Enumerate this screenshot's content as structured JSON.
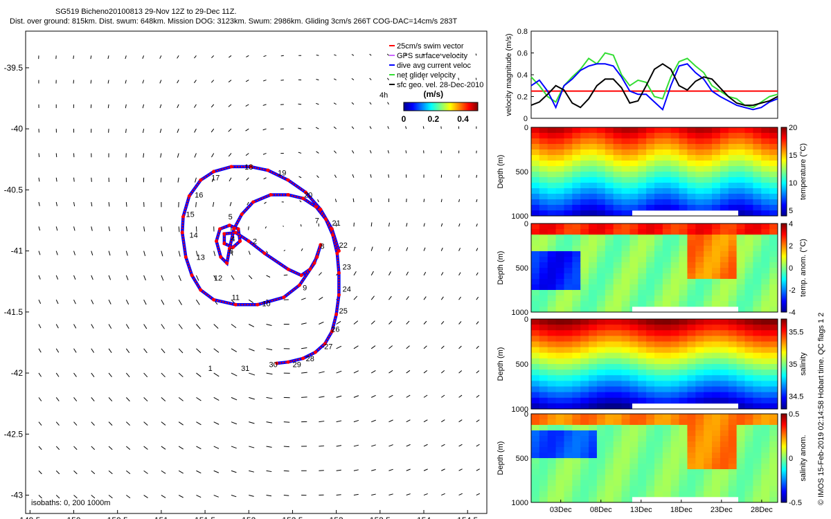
{
  "header": {
    "line1": "SG519 Bicheno20100813 29-Nov 12Z to 29-Dec 11Z.",
    "line2": "Dist. over ground: 815km. Dist. swum: 648km. Mission DOG: 3123km. Swum: 2986km. Gliding 3cm/s 266T COG-DAC=14cm/s 283T"
  },
  "footer_note": "© IMOS 15-Feb-2019 02:14:58 Hobart time. QC flags 1 2",
  "colors": {
    "track_red": "#ff0000",
    "track_blue": "#0000ff",
    "net_green": "#33dd33",
    "black": "#000000"
  },
  "chart_data": [
    {
      "type": "scatter",
      "title": "map",
      "x_ticks": [
        "149.5",
        "150",
        "150.5",
        "151",
        "151.5",
        "152",
        "152.5",
        "153",
        "153.5",
        "154",
        "154.5"
      ],
      "y_ticks": [
        "-39.5",
        "-40",
        "-40.5",
        "-41",
        "-41.5",
        "-42",
        "-42.5",
        "-43"
      ],
      "xlim": [
        149.45,
        154.72
      ],
      "ylim": [
        -43.15,
        -39.2
      ],
      "legend": [
        {
          "label": "25cm/s swim vector",
          "color": "#ff0000"
        },
        {
          "label": "GPS surface velocity",
          "color": "#cc66ff"
        },
        {
          "label": "dive avg current veloc",
          "color": "#0000ff"
        },
        {
          "label": "net glider velocity",
          "color": "#33dd33"
        },
        {
          "label": "sfc geo. vel. 28-Dec-2010",
          "color": "#000000"
        }
      ],
      "legend_placement": "top-right",
      "colorbar": {
        "title": "(m/s)",
        "ticks": [
          "0",
          "0.2",
          "0.4"
        ],
        "range": [
          0,
          0.5
        ]
      },
      "annotation_4h": "4h",
      "isobaths": "isobaths: 0,  200  1000m",
      "track": [
        [
          152.32,
          -41.92
        ],
        [
          152.45,
          -41.91
        ],
        [
          152.62,
          -41.88
        ],
        [
          152.76,
          -41.83
        ],
        [
          152.87,
          -41.76
        ],
        [
          152.95,
          -41.66
        ],
        [
          153.0,
          -41.52
        ],
        [
          153.03,
          -41.36
        ],
        [
          153.03,
          -41.18
        ],
        [
          153.01,
          -41.02
        ],
        [
          152.96,
          -40.87
        ],
        [
          152.88,
          -40.74
        ],
        [
          152.77,
          -40.64
        ],
        [
          152.62,
          -40.57
        ],
        [
          152.45,
          -40.54
        ],
        [
          152.25,
          -40.54
        ],
        [
          152.05,
          -40.6
        ],
        [
          151.92,
          -40.7
        ],
        [
          151.83,
          -40.82
        ],
        [
          151.78,
          -40.98
        ],
        [
          151.75,
          -41.1
        ],
        [
          151.68,
          -41.05
        ],
        [
          151.63,
          -40.92
        ],
        [
          151.67,
          -40.82
        ],
        [
          151.78,
          -40.79
        ],
        [
          151.88,
          -40.82
        ],
        [
          151.9,
          -40.92
        ],
        [
          151.82,
          -40.97
        ],
        [
          151.72,
          -40.94
        ],
        [
          151.72,
          -40.86
        ],
        [
          151.85,
          -40.85
        ],
        [
          152.0,
          -40.92
        ],
        [
          152.18,
          -41.02
        ],
        [
          152.45,
          -41.15
        ],
        [
          152.6,
          -41.2
        ],
        [
          152.7,
          -41.15
        ],
        [
          152.78,
          -41.05
        ],
        [
          152.82,
          -40.95
        ],
        [
          152.75,
          -41.1
        ],
        [
          152.58,
          -41.28
        ],
        [
          152.4,
          -41.38
        ],
        [
          152.1,
          -41.44
        ],
        [
          151.85,
          -41.44
        ],
        [
          151.6,
          -41.4
        ],
        [
          151.45,
          -41.32
        ],
        [
          151.35,
          -41.2
        ],
        [
          151.28,
          -41.05
        ],
        [
          151.24,
          -40.85
        ],
        [
          151.25,
          -40.72
        ],
        [
          151.32,
          -40.55
        ],
        [
          151.45,
          -40.42
        ],
        [
          151.6,
          -40.35
        ],
        [
          151.8,
          -40.31
        ],
        [
          152.02,
          -40.31
        ],
        [
          152.22,
          -40.34
        ],
        [
          152.45,
          -40.42
        ],
        [
          152.65,
          -40.52
        ],
        [
          152.82,
          -40.66
        ],
        [
          152.95,
          -40.82
        ],
        [
          153.03,
          -41.0
        ]
      ],
      "day_labels": [
        {
          "t": "1",
          "lon": 151.56,
          "lat": -41.96
        },
        {
          "t": "31",
          "lon": 151.96,
          "lat": -41.96
        },
        {
          "t": "30",
          "lon": 152.28,
          "lat": -41.93
        },
        {
          "t": "2",
          "lon": 152.07,
          "lat": -40.92
        },
        {
          "t": "4",
          "lon": 151.82,
          "lat": -40.9
        },
        {
          "t": "5",
          "lon": 151.79,
          "lat": -40.72
        },
        {
          "t": "6",
          "lon": 151.8,
          "lat": -41.0
        },
        {
          "t": "7",
          "lon": 152.78,
          "lat": -40.75
        },
        {
          "t": "8",
          "lon": 152.84,
          "lat": -40.96
        },
        {
          "t": "9",
          "lon": 152.64,
          "lat": -41.3
        },
        {
          "t": "10",
          "lon": 152.2,
          "lat": -41.43
        },
        {
          "t": "11",
          "lon": 151.85,
          "lat": -41.38
        },
        {
          "t": "12",
          "lon": 151.65,
          "lat": -41.22
        },
        {
          "t": "13",
          "lon": 151.45,
          "lat": -41.05
        },
        {
          "t": "14",
          "lon": 151.37,
          "lat": -40.87
        },
        {
          "t": "15",
          "lon": 151.33,
          "lat": -40.7
        },
        {
          "t": "16",
          "lon": 151.43,
          "lat": -40.54
        },
        {
          "t": "17",
          "lon": 151.62,
          "lat": -40.4
        },
        {
          "t": "18",
          "lon": 152.0,
          "lat": -40.31
        },
        {
          "t": "19",
          "lon": 152.38,
          "lat": -40.36
        },
        {
          "t": "20",
          "lon": 152.68,
          "lat": -40.54
        },
        {
          "t": "21",
          "lon": 153.0,
          "lat": -40.77
        },
        {
          "t": "22",
          "lon": 153.08,
          "lat": -40.95
        },
        {
          "t": "23",
          "lon": 153.12,
          "lat": -41.13
        },
        {
          "t": "24",
          "lon": 153.12,
          "lat": -41.31
        },
        {
          "t": "25",
          "lon": 153.08,
          "lat": -41.49
        },
        {
          "t": "26",
          "lon": 152.99,
          "lat": -41.64
        },
        {
          "t": "27",
          "lon": 152.91,
          "lat": -41.78
        },
        {
          "t": "28",
          "lon": 152.7,
          "lat": -41.88
        },
        {
          "t": "29",
          "lon": 152.55,
          "lat": -41.93
        }
      ]
    },
    {
      "type": "line",
      "title": "velocity",
      "ylabel": "velocity magnitude (m/s)",
      "ylim": [
        0,
        0.8
      ],
      "y_ticks": [
        "0",
        "0.2",
        "0.4",
        "0.6",
        "0.8"
      ],
      "xlim": [
        0,
        30
      ],
      "series": [
        {
          "color": "#ff0000",
          "values": [
            0.25,
            0.25,
            0.25,
            0.25,
            0.25,
            0.25,
            0.25,
            0.25,
            0.25,
            0.25,
            0.25,
            0.25,
            0.25,
            0.25,
            0.25,
            0.25,
            0.25,
            0.25,
            0.25,
            0.25,
            0.25,
            0.25,
            0.25,
            0.25,
            0.25,
            0.25,
            0.25,
            0.25,
            0.25,
            0.25,
            0.25
          ]
        },
        {
          "color": "#33dd33",
          "values": [
            0.38,
            0.3,
            0.2,
            0.15,
            0.3,
            0.38,
            0.45,
            0.55,
            0.5,
            0.6,
            0.58,
            0.4,
            0.3,
            0.35,
            0.33,
            0.2,
            0.18,
            0.38,
            0.52,
            0.55,
            0.48,
            0.42,
            0.3,
            0.25,
            0.2,
            0.18,
            0.12,
            0.1,
            0.15,
            0.2,
            0.22
          ]
        },
        {
          "color": "#0000ff",
          "values": [
            0.3,
            0.35,
            0.25,
            0.1,
            0.3,
            0.36,
            0.44,
            0.48,
            0.5,
            0.5,
            0.48,
            0.38,
            0.25,
            0.22,
            0.22,
            0.15,
            0.08,
            0.3,
            0.48,
            0.5,
            0.42,
            0.36,
            0.25,
            0.2,
            0.16,
            0.12,
            0.1,
            0.08,
            0.1,
            0.15,
            0.18
          ]
        },
        {
          "color": "#000000",
          "values": [
            0.12,
            0.15,
            0.22,
            0.3,
            0.26,
            0.14,
            0.1,
            0.18,
            0.3,
            0.36,
            0.36,
            0.28,
            0.14,
            0.16,
            0.3,
            0.45,
            0.5,
            0.45,
            0.3,
            0.26,
            0.34,
            0.38,
            0.36,
            0.28,
            0.2,
            0.14,
            0.12,
            0.12,
            0.14,
            0.16,
            0.2
          ]
        }
      ]
    },
    {
      "type": "heatmap",
      "title": "temperature",
      "ylabel": "Depth (m)",
      "clabel": "temperature (°C)",
      "y_ticks": [
        "0",
        "500",
        "1000"
      ],
      "c_ticks": [
        "20",
        "15",
        "10",
        "5"
      ],
      "crange": [
        4,
        20
      ]
    },
    {
      "type": "heatmap",
      "title": "temperature anomaly",
      "ylabel": "Depth (m)",
      "clabel": "temp. anom. (°C)",
      "y_ticks": [
        "0",
        "500",
        "1000"
      ],
      "c_ticks": [
        "4",
        "2",
        "0",
        "-2",
        "-4"
      ],
      "crange": [
        -4,
        4
      ]
    },
    {
      "type": "heatmap",
      "title": "salinity",
      "ylabel": "Depth (m)",
      "clabel": "salinity",
      "y_ticks": [
        "0",
        "500",
        "1000"
      ],
      "c_ticks": [
        "35.5",
        "35",
        "34.5"
      ],
      "crange": [
        34.3,
        35.7
      ]
    },
    {
      "type": "heatmap",
      "title": "salinity anomaly",
      "ylabel": "Depth (m)",
      "clabel": "salinity anom.",
      "y_ticks": [
        "0",
        "500",
        "1000"
      ],
      "c_ticks": [
        "0.5",
        "0",
        "-0.5"
      ],
      "crange": [
        -0.5,
        0.5
      ],
      "x_ticks": [
        "03Dec",
        "08Dec",
        "13Dec",
        "18Dec",
        "23Dec",
        "28Dec"
      ]
    }
  ]
}
